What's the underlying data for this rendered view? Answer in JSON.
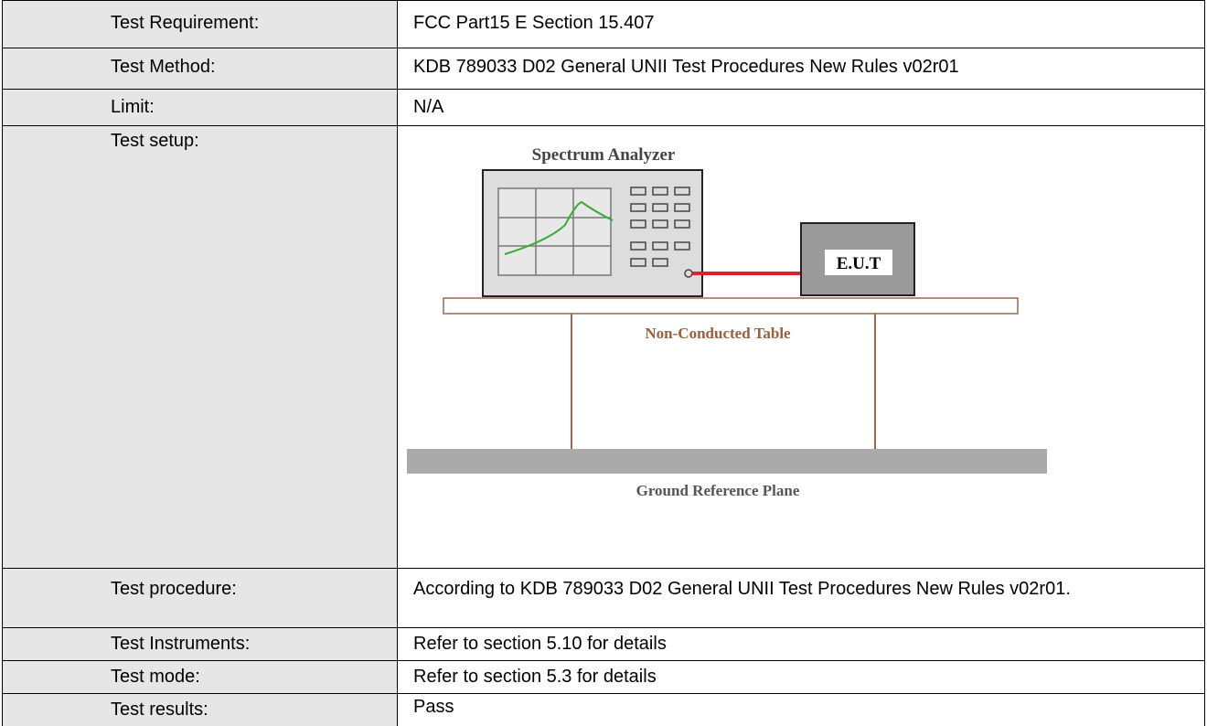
{
  "table": {
    "rows": [
      [
        "Test Requirement:",
        "FCC Part15 E Section 15.407"
      ],
      [
        "Test Method:",
        "KDB 789033 D02 General UNII Test Procedures New Rules v02r01"
      ],
      [
        "Limit:",
        "N/A"
      ],
      [
        "Test setup:",
        {
          "diagram": {
            "analyzer": "Spectrum Analyzer",
            "eut": "E.U.T",
            "table": "Non-Conducted Table",
            "ground": "Ground Reference Plane"
          }
        }
      ],
      [
        "Test procedure:",
        "According to KDB 789033 D02 General UNII Test Procedures New Rules v02r01."
      ],
      [
        "Test Instruments:",
        "Refer to section 5.10 for details"
      ],
      [
        "Test mode:",
        "Refer to section 5.3 for details"
      ],
      [
        "Test results:",
        "Pass"
      ]
    ]
  }
}
